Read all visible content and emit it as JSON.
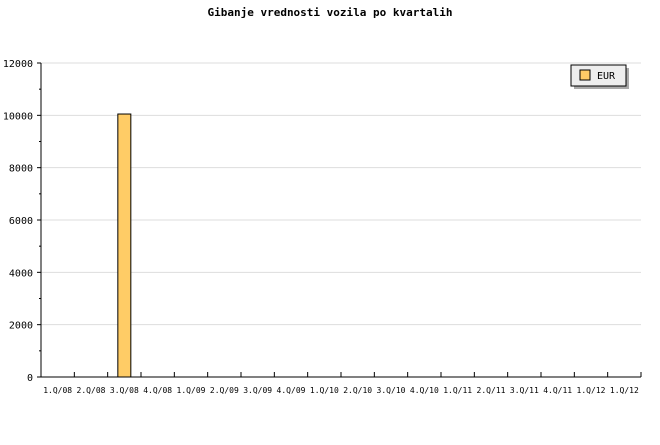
{
  "chart_data": {
    "type": "bar",
    "title": "Gibanje vrednosti vozila po kvartalih",
    "xlabel": "",
    "ylabel": "",
    "categories": [
      "1.Q/08",
      "2.Q/08",
      "3.Q/08",
      "4.Q/08",
      "1.Q/09",
      "2.Q/09",
      "3.Q/09",
      "4.Q/09",
      "1.Q/10",
      "2.Q/10",
      "3.Q/10",
      "4.Q/10",
      "1.Q/11",
      "2.Q/11",
      "3.Q/11",
      "4.Q/11",
      "1.Q/12",
      "1.Q/12"
    ],
    "series": [
      {
        "name": "EUR",
        "values": [
          0,
          0,
          10050,
          0,
          0,
          0,
          0,
          0,
          0,
          0,
          0,
          0,
          0,
          0,
          0,
          0,
          0,
          0
        ],
        "color": "#ffcc66"
      }
    ],
    "ylim": [
      0,
      12000
    ],
    "yticks": [
      0,
      2000,
      4000,
      6000,
      8000,
      10000,
      12000
    ],
    "grid": true,
    "legend_position": "top-right"
  }
}
